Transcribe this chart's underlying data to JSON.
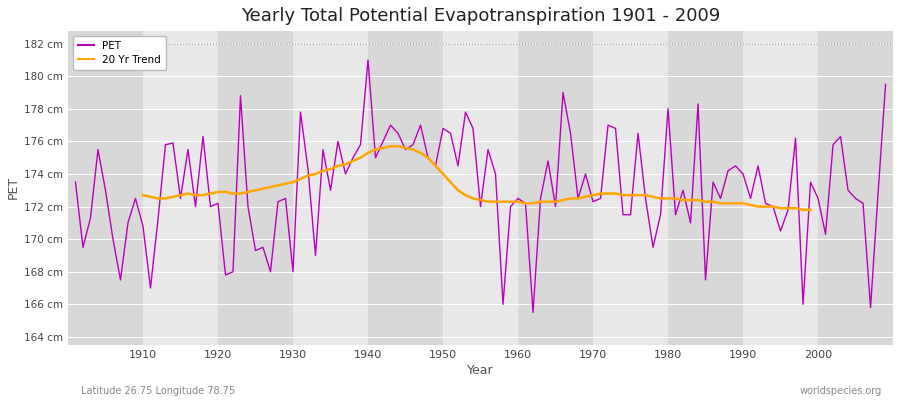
{
  "title": "Yearly Total Potential Evapotranspiration 1901 - 2009",
  "xlabel": "Year",
  "ylabel": "PET",
  "subtitle_left": "Latitude 26.75 Longitude 78.75",
  "subtitle_right": "worldspecies.org",
  "ylim": [
    163.5,
    182.8
  ],
  "yticks": [
    164,
    166,
    168,
    170,
    172,
    174,
    176,
    178,
    180,
    182
  ],
  "ytick_labels": [
    "164 cm",
    "166 cm",
    "168 cm",
    "170 cm",
    "172 cm",
    "174 cm",
    "176 cm",
    "178 cm",
    "180 cm",
    "182 cm"
  ],
  "yline_182": 182,
  "years": [
    1901,
    1902,
    1903,
    1904,
    1905,
    1906,
    1907,
    1908,
    1909,
    1910,
    1911,
    1912,
    1913,
    1914,
    1915,
    1916,
    1917,
    1918,
    1919,
    1920,
    1921,
    1922,
    1923,
    1924,
    1925,
    1926,
    1927,
    1928,
    1929,
    1930,
    1931,
    1932,
    1933,
    1934,
    1935,
    1936,
    1937,
    1938,
    1939,
    1940,
    1941,
    1942,
    1943,
    1944,
    1945,
    1946,
    1947,
    1948,
    1949,
    1950,
    1951,
    1952,
    1953,
    1954,
    1955,
    1956,
    1957,
    1958,
    1959,
    1960,
    1961,
    1962,
    1963,
    1964,
    1965,
    1966,
    1967,
    1968,
    1969,
    1970,
    1971,
    1972,
    1973,
    1974,
    1975,
    1976,
    1977,
    1978,
    1979,
    1980,
    1981,
    1982,
    1983,
    1984,
    1985,
    1986,
    1987,
    1988,
    1989,
    1990,
    1991,
    1992,
    1993,
    1994,
    1995,
    1996,
    1997,
    1998,
    1999,
    2000,
    2001,
    2002,
    2003,
    2004,
    2005,
    2006,
    2007,
    2008,
    2009
  ],
  "pet": [
    173.5,
    169.5,
    171.3,
    175.5,
    173.0,
    170.0,
    167.5,
    171.0,
    172.5,
    170.8,
    167.0,
    171.2,
    175.8,
    175.9,
    172.5,
    175.5,
    172.0,
    176.3,
    172.0,
    172.2,
    167.8,
    168.0,
    178.8,
    172.0,
    169.3,
    169.5,
    168.0,
    172.3,
    172.5,
    168.0,
    177.8,
    174.3,
    169.0,
    175.5,
    173.0,
    176.0,
    174.0,
    175.0,
    175.8,
    181.0,
    175.0,
    176.0,
    177.0,
    176.5,
    175.5,
    175.8,
    177.0,
    175.0,
    174.5,
    176.8,
    176.5,
    174.5,
    177.8,
    176.8,
    172.0,
    175.5,
    174.0,
    166.0,
    172.0,
    172.5,
    172.2,
    165.5,
    172.5,
    174.8,
    172.0,
    179.0,
    176.5,
    172.5,
    174.0,
    172.3,
    172.5,
    177.0,
    176.8,
    171.5,
    171.5,
    176.5,
    172.5,
    169.5,
    171.5,
    178.0,
    171.5,
    173.0,
    171.0,
    178.3,
    167.5,
    173.5,
    172.5,
    174.2,
    174.5,
    174.0,
    172.5,
    174.5,
    172.2,
    172.0,
    170.5,
    171.8,
    176.2,
    166.0,
    173.5,
    172.5,
    170.3,
    175.8,
    176.3,
    173.0,
    172.5,
    172.2,
    165.8,
    172.8,
    179.5
  ],
  "trend": [
    null,
    null,
    null,
    null,
    null,
    null,
    null,
    null,
    null,
    172.7,
    172.6,
    172.5,
    172.5,
    172.6,
    172.7,
    172.8,
    172.7,
    172.7,
    172.8,
    172.9,
    172.9,
    172.8,
    172.8,
    172.9,
    173.0,
    173.1,
    173.2,
    173.3,
    173.4,
    173.5,
    173.7,
    173.9,
    174.0,
    174.2,
    174.3,
    174.5,
    174.6,
    174.8,
    175.0,
    175.3,
    175.5,
    175.6,
    175.7,
    175.7,
    175.6,
    175.5,
    175.3,
    175.0,
    174.5,
    174.0,
    173.5,
    173.0,
    172.7,
    172.5,
    172.4,
    172.3,
    172.3,
    172.3,
    172.3,
    172.3,
    172.2,
    172.2,
    172.3,
    172.3,
    172.3,
    172.4,
    172.5,
    172.5,
    172.6,
    172.7,
    172.8,
    172.8,
    172.8,
    172.7,
    172.7,
    172.7,
    172.7,
    172.6,
    172.5,
    172.5,
    172.5,
    172.4,
    172.4,
    172.4,
    172.3,
    172.3,
    172.2,
    172.2,
    172.2,
    172.2,
    172.1,
    172.0,
    172.0,
    172.0,
    171.9,
    171.9,
    171.9,
    171.8,
    171.8
  ],
  "pet_color": "#BB00BB",
  "trend_color": "#FFA500",
  "fig_bg": "#FFFFFF",
  "plot_bg_dark": "#D8D8D8",
  "plot_bg_light": "#E8E8E8",
  "grid_color": "#FFFFFF",
  "band_dark": "#CCCCCC",
  "band_light": "#DADADA",
  "title_fontsize": 13,
  "legend_entries": [
    "PET",
    "20 Yr Trend"
  ],
  "xticks": [
    1910,
    1920,
    1930,
    1940,
    1950,
    1960,
    1970,
    1980,
    1990,
    2000
  ],
  "xmin": 1900,
  "xmax": 2010
}
